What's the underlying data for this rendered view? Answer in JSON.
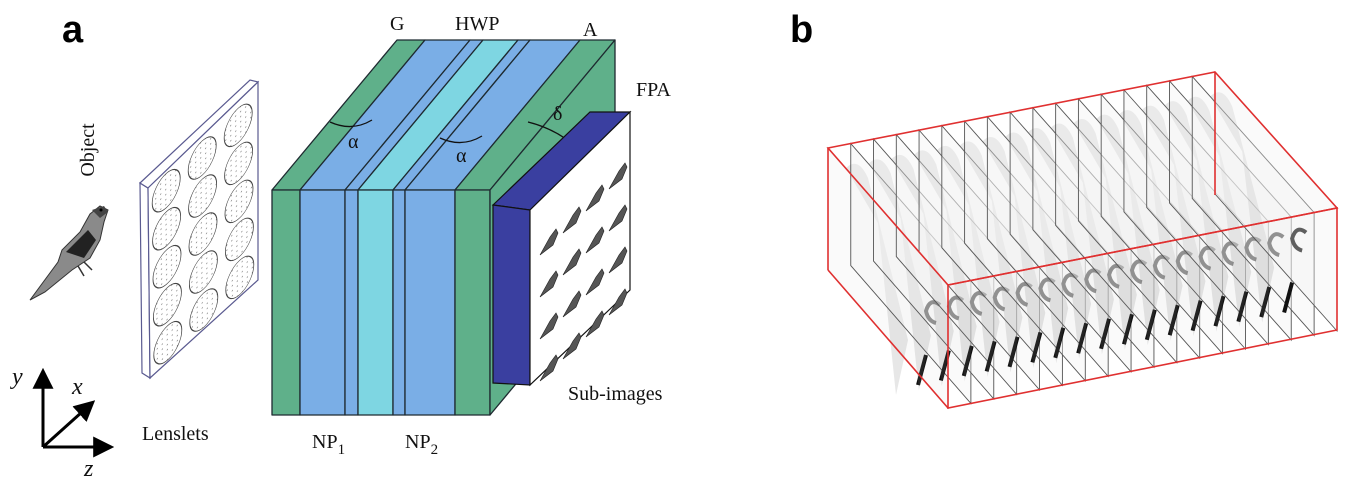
{
  "panel_a": {
    "label": "a",
    "object": "Object",
    "lenslets": "Lenslets",
    "layers": {
      "g": "G",
      "hwp": "HWP",
      "a": "A",
      "fpa": "FPA"
    },
    "angles": [
      "α",
      "α",
      "δ"
    ],
    "np1": {
      "base": "NP",
      "sub": "1"
    },
    "np2": {
      "base": "NP",
      "sub": "2"
    },
    "sub_images": "Sub-images",
    "axes": {
      "y": "y",
      "x": "x",
      "z": "z"
    }
  },
  "panel_b": {
    "label": "b"
  }
}
